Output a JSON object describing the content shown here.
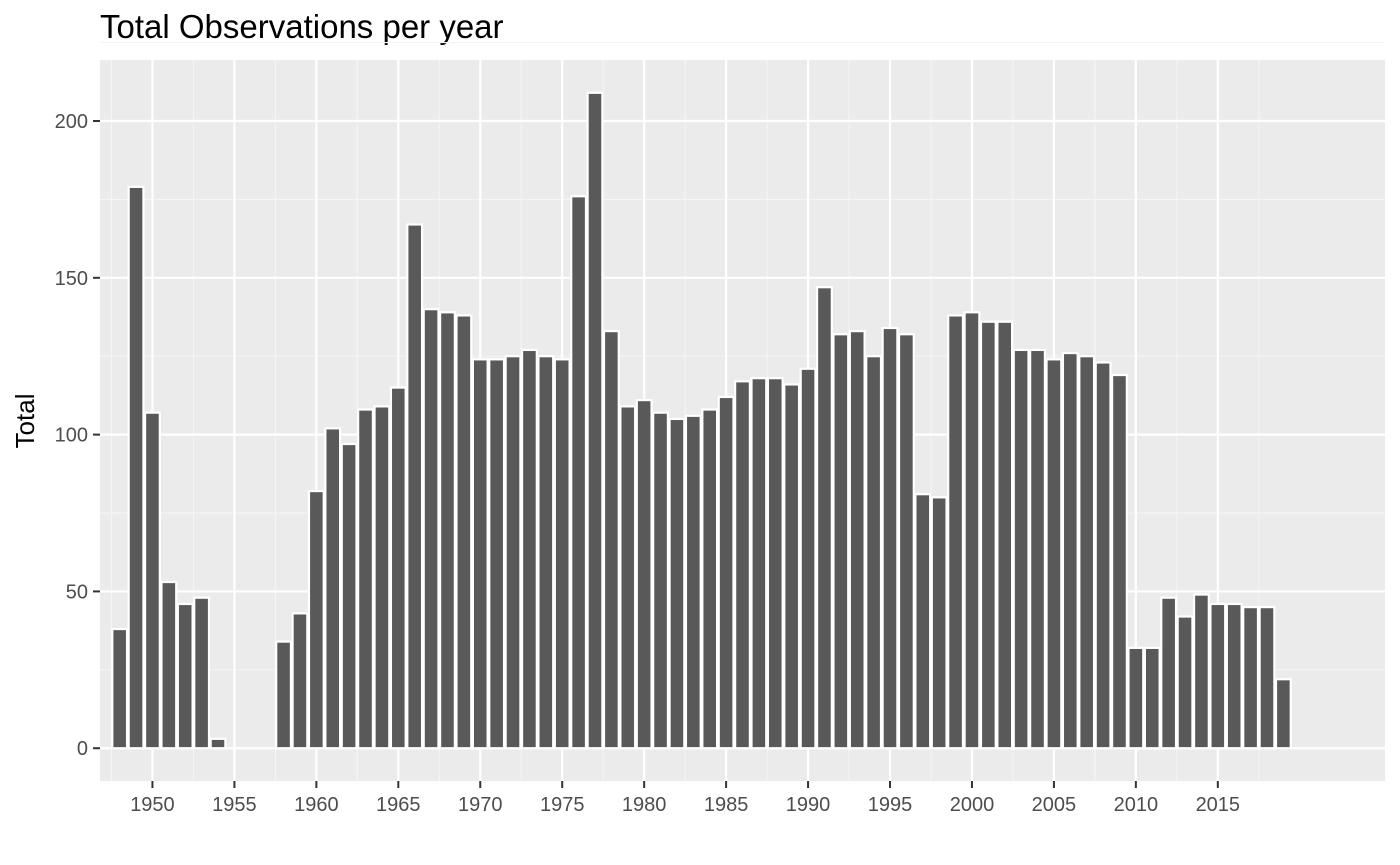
{
  "chart_data": {
    "type": "bar",
    "title": "Total Observations per year",
    "xlabel": "",
    "ylabel": "Total",
    "x": [
      1948,
      1949,
      1950,
      1951,
      1952,
      1953,
      1954,
      1958,
      1959,
      1960,
      1961,
      1962,
      1963,
      1964,
      1965,
      1966,
      1967,
      1968,
      1969,
      1970,
      1971,
      1972,
      1973,
      1974,
      1975,
      1976,
      1977,
      1978,
      1979,
      1980,
      1981,
      1982,
      1983,
      1984,
      1985,
      1986,
      1987,
      1988,
      1989,
      1990,
      1991,
      1992,
      1993,
      1994,
      1995,
      1996,
      1997,
      1998,
      1999,
      2000,
      2001,
      2002,
      2003,
      2004,
      2005,
      2006,
      2007,
      2008,
      2009,
      2010,
      2011,
      2012,
      2013,
      2014,
      2015,
      2016,
      2017,
      2018,
      2019
    ],
    "values": [
      38,
      179,
      107,
      53,
      46,
      48,
      3,
      34,
      43,
      82,
      102,
      97,
      108,
      109,
      115,
      167,
      140,
      139,
      138,
      124,
      124,
      125,
      127,
      125,
      124,
      176,
      209,
      133,
      109,
      111,
      107,
      105,
      106,
      108,
      112,
      117,
      118,
      118,
      116,
      121,
      147,
      132,
      133,
      125,
      134,
      132,
      81,
      80,
      138,
      139,
      136,
      136,
      127,
      127,
      124,
      126,
      125,
      123,
      119,
      32,
      32,
      48,
      42,
      49,
      46,
      46,
      45,
      45,
      22
    ],
    "xlim": [
      1946.8,
      2025.2
    ],
    "ylim": [
      -10.45,
      219.45
    ],
    "x_ticks": [
      "1950",
      "1955",
      "1960",
      "1965",
      "1970",
      "1975",
      "1980",
      "1985",
      "1990",
      "1995",
      "2000",
      "2005",
      "2010",
      "2015"
    ],
    "y_ticks": [
      "0",
      "50",
      "100",
      "150",
      "200"
    ],
    "grid": true,
    "colors": {
      "bar_fill": "#595959",
      "bar_outline": "#ffffff",
      "panel_background": "#ebebeb",
      "grid_major": "#ffffff",
      "grid_minor": "#f5f5f5"
    }
  }
}
